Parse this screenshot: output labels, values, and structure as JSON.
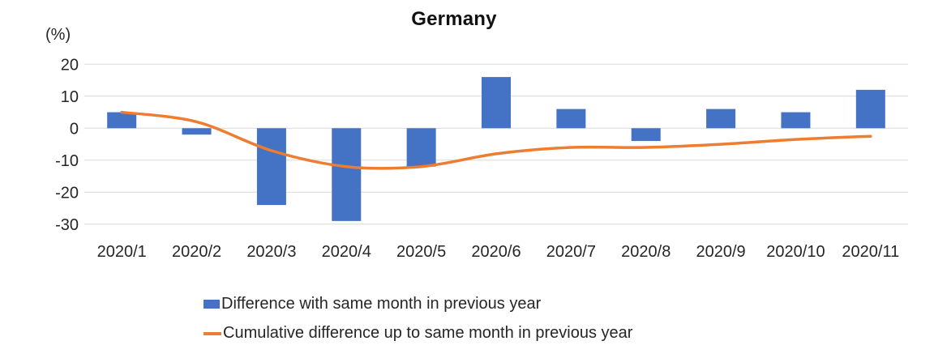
{
  "chart_data": {
    "type": "bar",
    "title": "Germany",
    "categories": [
      "2020/1",
      "2020/2",
      "2020/3",
      "2020/4",
      "2020/5",
      "2020/6",
      "2020/7",
      "2020/8",
      "2020/9",
      "2020/10",
      "2020/11"
    ],
    "series": [
      {
        "name": "Difference with same month in previous year",
        "type": "bar",
        "values": [
          5,
          -2,
          -24,
          -29,
          -12,
          16,
          6,
          -4,
          6,
          5,
          12
        ]
      },
      {
        "name": "Cumulative difference up to same month in previous year",
        "type": "line",
        "values": [
          5,
          2,
          -7,
          -12,
          -12,
          -8,
          -6,
          -6,
          -5,
          -3.5,
          -2.5
        ]
      }
    ],
    "xlabel": "",
    "ylabel": "(%)",
    "ylim": [
      -30,
      20
    ],
    "yticks": [
      20,
      10,
      0,
      -10,
      -20,
      -30
    ],
    "grid": true,
    "legend_position": "bottom"
  },
  "colors": {
    "bar": "#4472C4",
    "line": "#ED7D31",
    "gridline": "#D9D9D9",
    "text": "#262626",
    "title": "#111111"
  }
}
